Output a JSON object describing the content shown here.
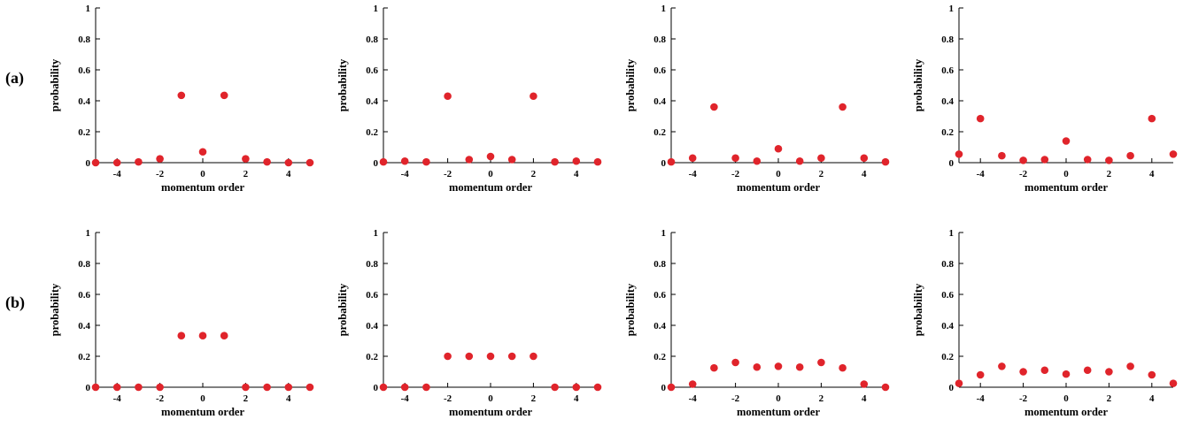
{
  "row_labels": [
    "(a)",
    "(b)"
  ],
  "style": {
    "point_color": "#e0242b",
    "axis_color": "#000000"
  },
  "chart_data": [
    {
      "type": "scatter",
      "row": 0,
      "col": 0,
      "xlabel": "momentum order",
      "ylabel": "probability",
      "xlim": [
        -5,
        5
      ],
      "ylim": [
        0,
        1
      ],
      "xticks": [
        -4,
        -2,
        0,
        2,
        4
      ],
      "yticks": [
        0,
        0.2,
        0.4,
        0.6,
        0.8,
        1
      ],
      "x": [
        -5,
        -4,
        -3,
        -2,
        -1,
        0,
        1,
        2,
        3,
        4,
        5
      ],
      "y": [
        0.0,
        0.0,
        0.005,
        0.025,
        0.435,
        0.07,
        0.435,
        0.025,
        0.005,
        0.0,
        0.0
      ]
    },
    {
      "type": "scatter",
      "row": 0,
      "col": 1,
      "xlabel": "momentum order",
      "ylabel": "probability",
      "xlim": [
        -5,
        5
      ],
      "ylim": [
        0,
        1
      ],
      "xticks": [
        -4,
        -2,
        0,
        2,
        4
      ],
      "yticks": [
        0,
        0.2,
        0.4,
        0.6,
        0.8,
        1
      ],
      "x": [
        -5,
        -4,
        -3,
        -2,
        -1,
        0,
        1,
        2,
        3,
        4,
        5
      ],
      "y": [
        0.005,
        0.01,
        0.005,
        0.43,
        0.02,
        0.04,
        0.02,
        0.43,
        0.005,
        0.01,
        0.005
      ]
    },
    {
      "type": "scatter",
      "row": 0,
      "col": 2,
      "xlabel": "momentum order",
      "ylabel": "probability",
      "xlim": [
        -5,
        5
      ],
      "ylim": [
        0,
        1
      ],
      "xticks": [
        -4,
        -2,
        0,
        2,
        4
      ],
      "yticks": [
        0,
        0.2,
        0.4,
        0.6,
        0.8,
        1
      ],
      "x": [
        -5,
        -4,
        -3,
        -2,
        -1,
        0,
        1,
        2,
        3,
        4,
        5
      ],
      "y": [
        0.005,
        0.03,
        0.36,
        0.03,
        0.01,
        0.09,
        0.01,
        0.03,
        0.36,
        0.03,
        0.005
      ]
    },
    {
      "type": "scatter",
      "row": 0,
      "col": 3,
      "xlabel": "momentum order",
      "ylabel": "probability",
      "xlim": [
        -5,
        5
      ],
      "ylim": [
        0,
        1
      ],
      "xticks": [
        -4,
        -2,
        0,
        2,
        4
      ],
      "yticks": [
        0,
        0.2,
        0.4,
        0.6,
        0.8,
        1
      ],
      "x": [
        -5,
        -4,
        -3,
        -2,
        -1,
        0,
        1,
        2,
        3,
        4,
        5
      ],
      "y": [
        0.055,
        0.285,
        0.045,
        0.015,
        0.02,
        0.14,
        0.02,
        0.015,
        0.045,
        0.285,
        0.055
      ]
    },
    {
      "type": "scatter",
      "row": 1,
      "col": 0,
      "xlabel": "momentum order",
      "ylabel": "probability",
      "xlim": [
        -5,
        5
      ],
      "ylim": [
        0,
        1
      ],
      "xticks": [
        -4,
        -2,
        0,
        2,
        4
      ],
      "yticks": [
        0,
        0.2,
        0.4,
        0.6,
        0.8,
        1
      ],
      "x": [
        -5,
        -4,
        -3,
        -2,
        -1,
        0,
        1,
        2,
        3,
        4,
        5
      ],
      "y": [
        0,
        0,
        0,
        0,
        0.333,
        0.333,
        0.333,
        0,
        0,
        0,
        0
      ]
    },
    {
      "type": "scatter",
      "row": 1,
      "col": 1,
      "xlabel": "momentum order",
      "ylabel": "probability",
      "xlim": [
        -5,
        5
      ],
      "ylim": [
        0,
        1
      ],
      "xticks": [
        -4,
        -2,
        0,
        2,
        4
      ],
      "yticks": [
        0,
        0.2,
        0.4,
        0.6,
        0.8,
        1
      ],
      "x": [
        -5,
        -4,
        -3,
        -2,
        -1,
        0,
        1,
        2,
        3,
        4,
        5
      ],
      "y": [
        0,
        0,
        0,
        0.2,
        0.2,
        0.2,
        0.2,
        0.2,
        0,
        0,
        0
      ]
    },
    {
      "type": "scatter",
      "row": 1,
      "col": 2,
      "xlabel": "momentum order",
      "ylabel": "probability",
      "xlim": [
        -5,
        5
      ],
      "ylim": [
        0,
        1
      ],
      "xticks": [
        -4,
        -2,
        0,
        2,
        4
      ],
      "yticks": [
        0,
        0.2,
        0.4,
        0.6,
        0.8,
        1
      ],
      "x": [
        -5,
        -4,
        -3,
        -2,
        -1,
        0,
        1,
        2,
        3,
        4,
        5
      ],
      "y": [
        0.0,
        0.02,
        0.125,
        0.16,
        0.13,
        0.135,
        0.13,
        0.16,
        0.125,
        0.02,
        0.0
      ]
    },
    {
      "type": "scatter",
      "row": 1,
      "col": 3,
      "xlabel": "momentum order",
      "ylabel": "probability",
      "xlim": [
        -5,
        5
      ],
      "ylim": [
        0,
        1
      ],
      "xticks": [
        -4,
        -2,
        0,
        2,
        4
      ],
      "yticks": [
        0,
        0.2,
        0.4,
        0.6,
        0.8,
        1
      ],
      "x": [
        -5,
        -4,
        -3,
        -2,
        -1,
        0,
        1,
        2,
        3,
        4,
        5
      ],
      "y": [
        0.025,
        0.08,
        0.135,
        0.1,
        0.11,
        0.085,
        0.11,
        0.1,
        0.135,
        0.08,
        0.025
      ]
    }
  ]
}
